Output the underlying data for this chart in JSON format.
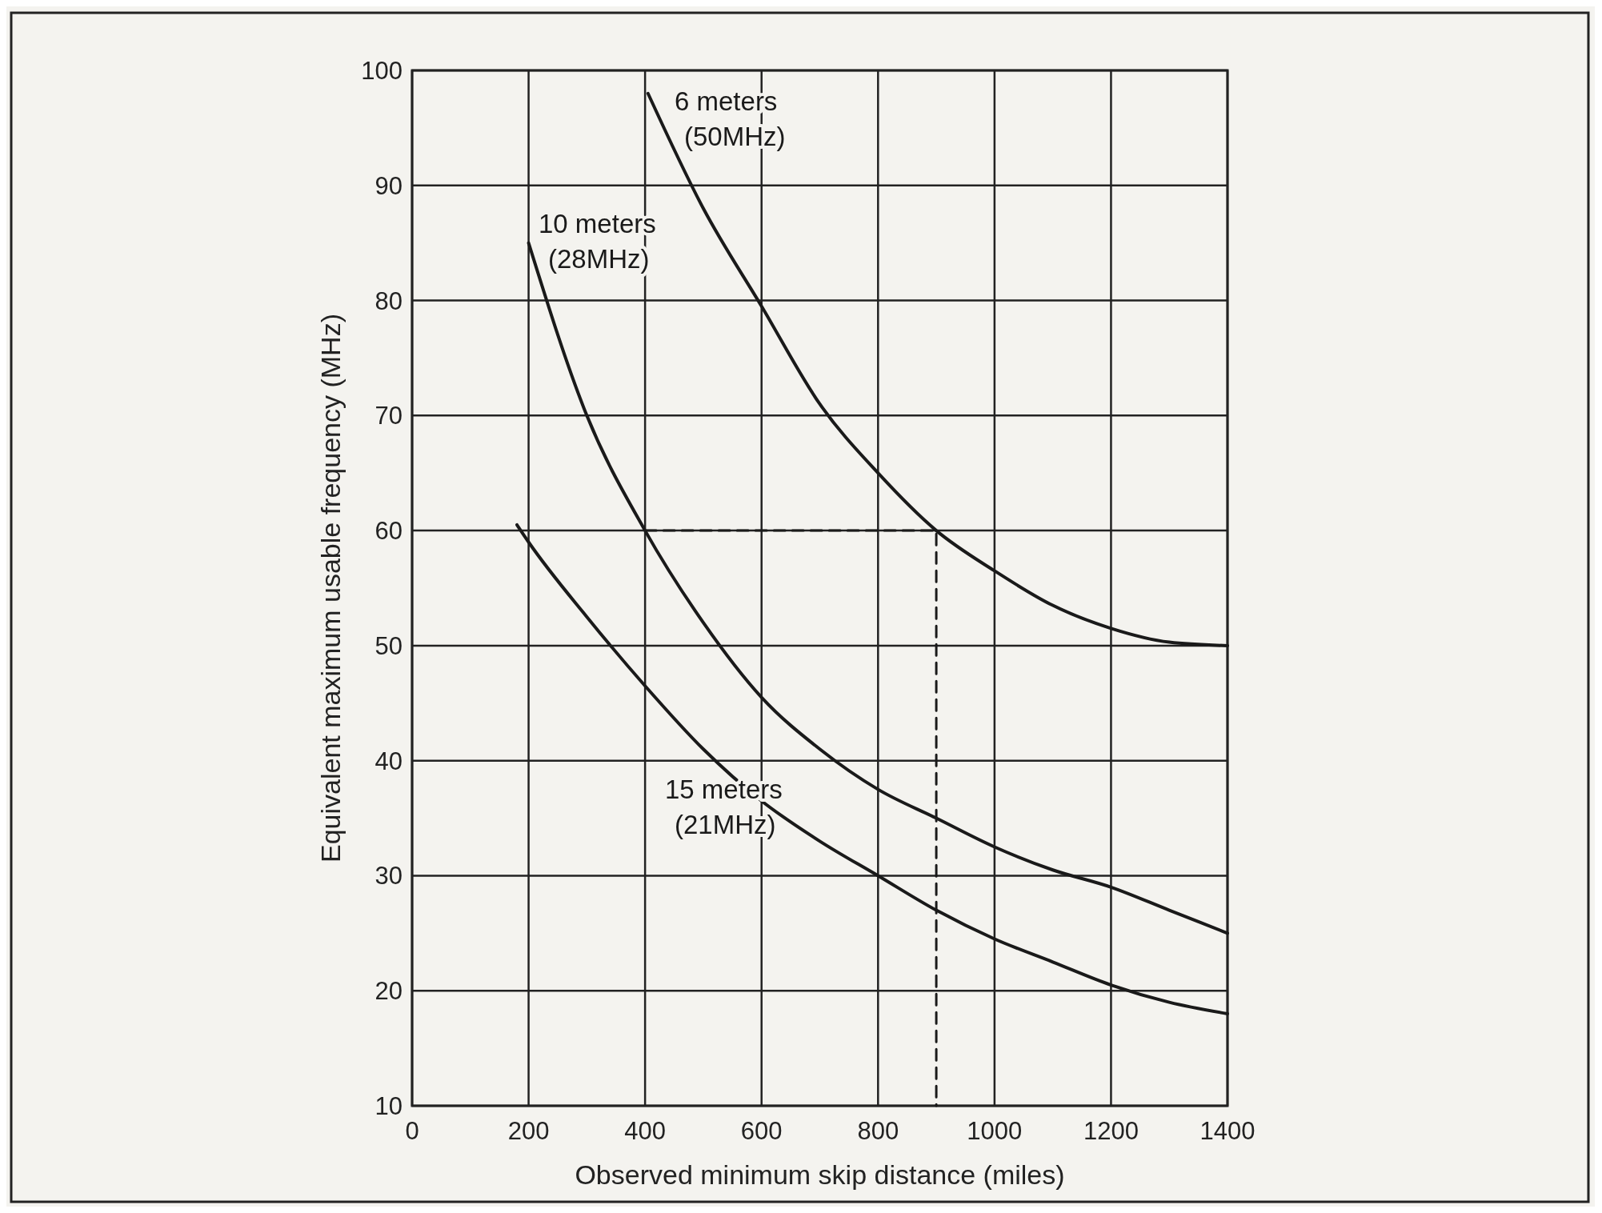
{
  "chart_data": {
    "type": "line",
    "xlabel": "Observed minimum skip distance (miles)",
    "ylabel": "Equivalent maximum usable frequency (MHz)",
    "xlim": [
      0,
      1400
    ],
    "xticks": [
      0,
      200,
      400,
      600,
      800,
      1000,
      1200,
      1400
    ],
    "ylim": [
      10,
      100
    ],
    "yticks": [
      10,
      20,
      30,
      40,
      50,
      60,
      70,
      80,
      90,
      100
    ],
    "grid": true,
    "series": [
      {
        "name": "6 meters (50MHz)",
        "color": "#1a1a1a",
        "x": [
          405,
          500,
          600,
          700,
          800,
          900,
          1000,
          1100,
          1200,
          1300,
          1400
        ],
        "values": [
          98,
          88,
          79.5,
          71,
          65,
          60,
          56.5,
          53.5,
          51.5,
          50.3,
          50
        ]
      },
      {
        "name": "10 meters (28MHz)",
        "color": "#1a1a1a",
        "x": [
          200,
          300,
          400,
          500,
          600,
          700,
          800,
          900,
          1000,
          1100,
          1200,
          1300,
          1400
        ],
        "values": [
          85,
          70,
          60,
          52,
          45.5,
          41,
          37.5,
          35,
          32.5,
          30.5,
          29,
          27,
          25
        ]
      },
      {
        "name": "15 meters (21MHz)",
        "color": "#1a1a1a",
        "x": [
          180,
          200,
          300,
          400,
          500,
          600,
          700,
          800,
          900,
          1000,
          1100,
          1200,
          1300,
          1400
        ],
        "values": [
          60.5,
          59,
          52.5,
          46.5,
          41,
          36.5,
          33,
          30,
          27,
          24.5,
          22.5,
          20.5,
          19,
          18
        ]
      },
      {
        "color": "#1a1a1a",
        "line_style": "dashed",
        "x": [
          400,
          900,
          900
        ],
        "values": [
          60,
          60,
          10
        ]
      }
    ]
  }
}
